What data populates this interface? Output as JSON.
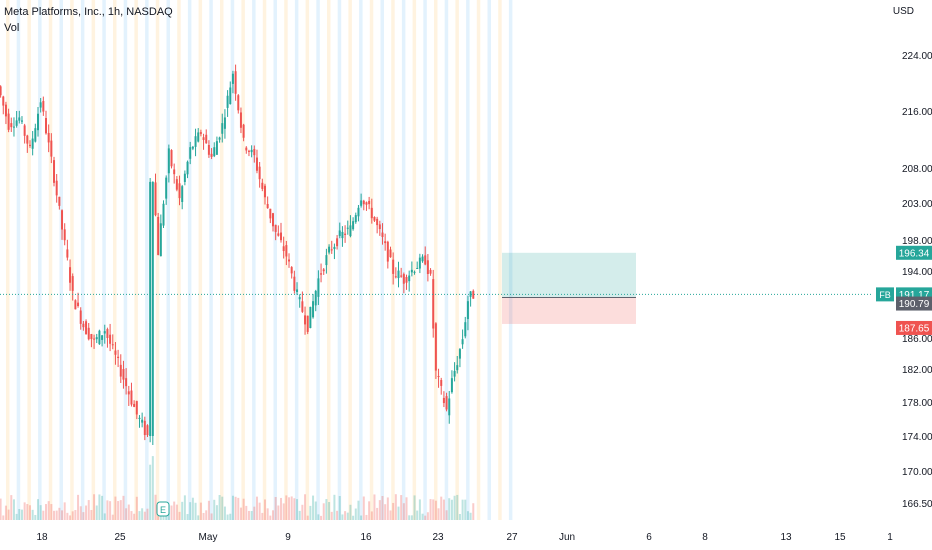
{
  "header": {
    "title": "Meta Platforms, Inc., 1h, NASDAQ",
    "volume_label": "Vol",
    "currency": "USD"
  },
  "colors": {
    "up": "#26a69a",
    "down": "#ef5350",
    "profit_zone": "#26a69a",
    "loss_zone": "#ef5350",
    "session_premarket": "#fff3e0",
    "session_postmarket": "#e3f2fd",
    "last_price_line": "#26a69a"
  },
  "price_tags": [
    {
      "label": "196.34",
      "value": 196.34,
      "bg": "#26a69a",
      "fg": "#ffffff",
      "name": "take-profit-tag"
    },
    {
      "label": "191.17",
      "value": 191.17,
      "bg": "#26a69a",
      "fg": "#ffffff",
      "prefix": "FB",
      "name": "last-price-tag"
    },
    {
      "label": "190.79",
      "value": 190.79,
      "bg": "#5d606b",
      "fg": "#ffffff",
      "name": "entry-price-tag"
    },
    {
      "label": "187.65",
      "value": 187.65,
      "bg": "#ef5350",
      "fg": "#ffffff",
      "name": "stop-loss-tag"
    }
  ],
  "chart_data": {
    "type": "candlestick",
    "ticker": "FB",
    "y_scale": "log",
    "y_ticks": [
      "224.00",
      "216.00",
      "208.00",
      "203.00",
      "198.00",
      "194.00",
      "186.00",
      "182.00",
      "178.00",
      "174.00",
      "170.00",
      "166.50"
    ],
    "x_ticks": [
      "18",
      "25",
      "May",
      "9",
      "16",
      "23",
      "27",
      "Jun",
      "6",
      "8",
      "13",
      "15",
      "1"
    ],
    "price_path": [
      {
        "date": "Apr 14",
        "price": 219.5
      },
      {
        "date": "Apr 15",
        "price": 214.0
      },
      {
        "date": "Apr 16",
        "price": 215.0
      },
      {
        "date": "Apr 17",
        "price": 210.5
      },
      {
        "date": "Apr 18",
        "price": 217.5
      },
      {
        "date": "Apr 19",
        "price": 209.0
      },
      {
        "date": "Apr 20",
        "price": 199.5
      },
      {
        "date": "Apr 21",
        "price": 191.0
      },
      {
        "date": "Apr 22",
        "price": 187.5
      },
      {
        "date": "Apr 23",
        "price": 185.5
      },
      {
        "date": "Apr 24",
        "price": 187.0
      },
      {
        "date": "Apr 25",
        "price": 183.5
      },
      {
        "date": "Apr 26",
        "price": 180.0
      },
      {
        "date": "Apr 27",
        "price": 176.5
      },
      {
        "date": "Apr 28",
        "price": 174.0
      },
      {
        "date": "Apr 28",
        "price": 206.0
      },
      {
        "date": "Apr 29",
        "price": 196.5
      },
      {
        "date": "Apr 30",
        "price": 210.0
      },
      {
        "date": "May 1",
        "price": 203.5
      },
      {
        "date": "May 2",
        "price": 210.5
      },
      {
        "date": "May 3",
        "price": 213.0
      },
      {
        "date": "May 4",
        "price": 209.5
      },
      {
        "date": "May 5",
        "price": 214.0
      },
      {
        "date": "May 6",
        "price": 221.5
      },
      {
        "date": "May 7",
        "price": 211.5
      },
      {
        "date": "May 8",
        "price": 209.5
      },
      {
        "date": "May 9",
        "price": 203.5
      },
      {
        "date": "May 10",
        "price": 199.0
      },
      {
        "date": "May 11",
        "price": 196.0
      },
      {
        "date": "May 12",
        "price": 191.0
      },
      {
        "date": "May 13",
        "price": 187.5
      },
      {
        "date": "May 14",
        "price": 193.0
      },
      {
        "date": "May 15",
        "price": 196.5
      },
      {
        "date": "May 16",
        "price": 198.5
      },
      {
        "date": "May 17",
        "price": 199.5
      },
      {
        "date": "May 18",
        "price": 204.0
      },
      {
        "date": "May 19",
        "price": 201.5
      },
      {
        "date": "May 20",
        "price": 198.0
      },
      {
        "date": "May 21",
        "price": 194.0
      },
      {
        "date": "May 22",
        "price": 193.0
      },
      {
        "date": "May 23",
        "price": 194.5
      },
      {
        "date": "May 24",
        "price": 195.5
      },
      {
        "date": "May 24",
        "price": 193.0
      },
      {
        "date": "May 25",
        "price": 181.5
      },
      {
        "date": "May 26",
        "price": 177.0
      },
      {
        "date": "May 26",
        "price": 180.5
      },
      {
        "date": "May 27",
        "price": 183.0
      },
      {
        "date": "May 27",
        "price": 186.0
      },
      {
        "date": "May 28",
        "price": 190.5
      },
      {
        "date": "May 28",
        "price": 191.17
      }
    ],
    "position": {
      "type": "long",
      "entry": 190.79,
      "take_profit": 196.34,
      "stop_loss": 187.65,
      "start": "May 28",
      "end": "Jun 6"
    },
    "last_price": 191.17,
    "grid": false,
    "legend": "none"
  }
}
